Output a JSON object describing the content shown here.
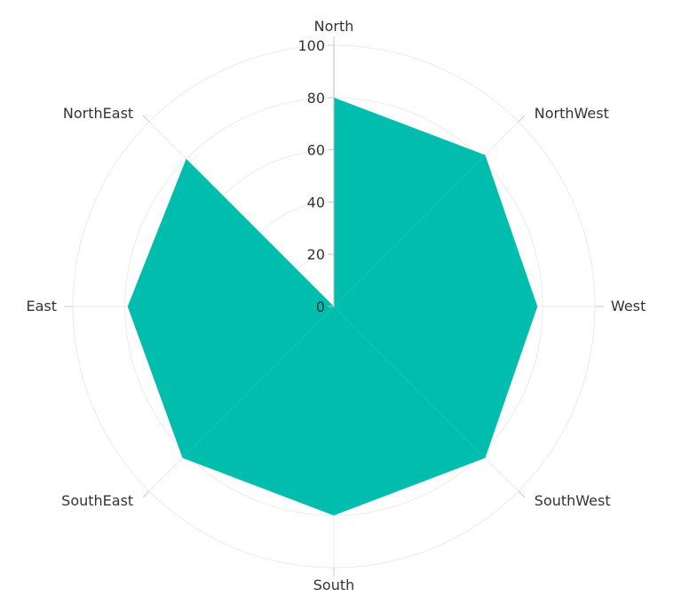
{
  "chart_data": {
    "type": "area",
    "polar": true,
    "title": "",
    "categories": [
      "North",
      "NorthWest",
      "West",
      "SouthWest",
      "South",
      "SouthEast",
      "East",
      "NorthEast"
    ],
    "rlim": [
      0,
      100
    ],
    "r_ticks": [
      0,
      20,
      40,
      60,
      80,
      100
    ],
    "series": [
      {
        "values": [
          80,
          82,
          78,
          82,
          80,
          82,
          79,
          80
        ],
        "color": "#00bdae"
      }
    ],
    "grid": true,
    "legend": "none",
    "start_angle_deg": 0,
    "direction": "clockwise"
  }
}
